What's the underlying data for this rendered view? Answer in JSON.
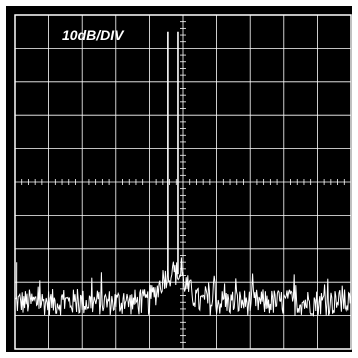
{
  "scale_label": "10dB/DIV",
  "colors": {
    "screen": "#000000",
    "frame": "#ffffff",
    "grid": "#ffffff",
    "trace": "#ffffff"
  },
  "chart_data": {
    "type": "line",
    "title": "",
    "xlabel": "",
    "ylabel": "",
    "grid": true,
    "x_divisions": 10,
    "y_divisions": 10,
    "xlim": [
      0,
      10
    ],
    "ylim": [
      -100,
      0
    ],
    "y_units_per_division": "10dB",
    "noise_floor": -86,
    "noise_spread": 4,
    "series": [
      {
        "spikes": [
          {
            "x": 4.55,
            "y": -5
          },
          {
            "x": 4.85,
            "y": -5
          }
        ],
        "skirt_points": [
          {
            "x": 4.0,
            "y": -85
          },
          {
            "x": 4.2,
            "y": -83
          },
          {
            "x": 4.35,
            "y": -80
          },
          {
            "x": 4.48,
            "y": -78
          },
          {
            "x": 4.7,
            "y": -77
          },
          {
            "x": 4.95,
            "y": -78
          },
          {
            "x": 5.1,
            "y": -81
          },
          {
            "x": 5.3,
            "y": -84
          },
          {
            "x": 5.5,
            "y": -86
          }
        ],
        "edge_spike": {
          "x": 0.05,
          "y": -74
        }
      }
    ]
  }
}
